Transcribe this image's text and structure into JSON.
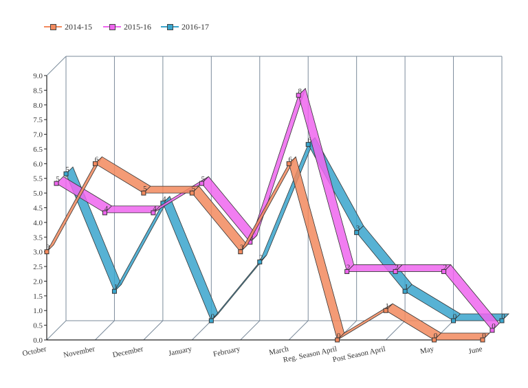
{
  "chart_data": {
    "type": "line",
    "categories": [
      "October",
      "November",
      "December",
      "January",
      "February",
      "March",
      "Reg. Season April",
      "Post Season April",
      "May",
      "June"
    ],
    "series": [
      {
        "name": "2014-15",
        "color": "#f28a5e",
        "values": [
          3,
          6,
          5,
          5,
          3,
          6,
          0,
          1,
          0,
          0
        ]
      },
      {
        "name": "2015-16",
        "color": "#ee66ee",
        "values": [
          5,
          4,
          4,
          5,
          3,
          8,
          2,
          2,
          2,
          0
        ]
      },
      {
        "name": "2016-17",
        "color": "#3aa5cc",
        "values": [
          5,
          1,
          4,
          0,
          2,
          6,
          3,
          1,
          0,
          0
        ]
      }
    ],
    "y_ticks": [
      "0.0",
      "0.5",
      "1.0",
      "1.5",
      "2.0",
      "2.5",
      "3.0",
      "3.5",
      "4.0",
      "4.5",
      "5.0",
      "5.5",
      "6.0",
      "6.5",
      "7.0",
      "7.5",
      "8.0",
      "8.5",
      "9.0"
    ],
    "ylim": [
      0,
      9
    ],
    "grid": true,
    "legend_position": "top-left",
    "title": "",
    "xlabel": "",
    "ylabel": ""
  }
}
